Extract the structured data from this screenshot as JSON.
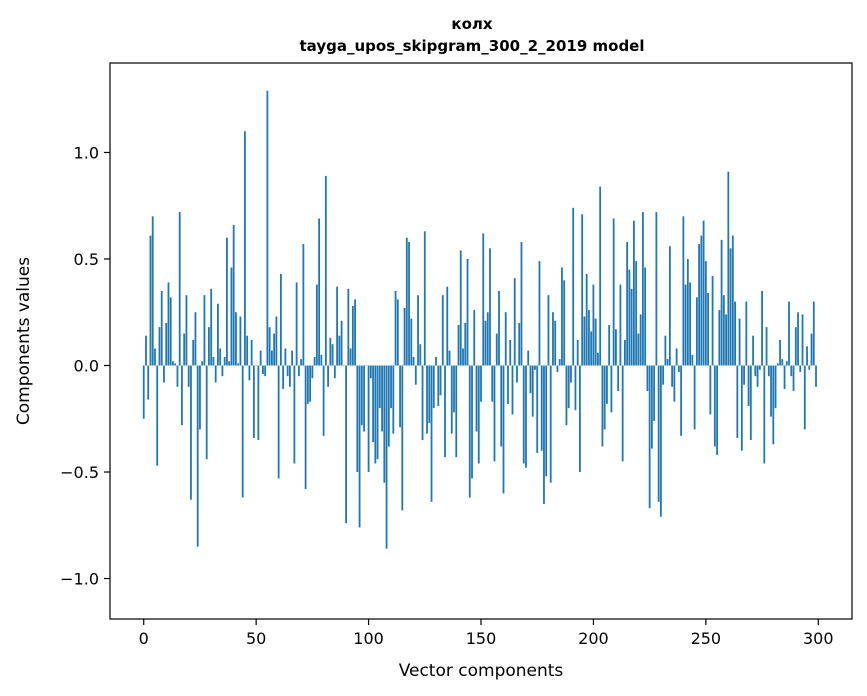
{
  "chart_data": {
    "type": "bar",
    "title": "колх",
    "subtitle": "tayga_upos_skipgram_300_2_2019 model",
    "xlabel": "Vector components",
    "ylabel": "Components values",
    "xlim": [
      -15,
      315
    ],
    "ylim": [
      -1.19,
      1.42
    ],
    "xticks": [
      0,
      50,
      100,
      150,
      200,
      250,
      300
    ],
    "xtick_labels": [
      "0",
      "50",
      "100",
      "150",
      "200",
      "250",
      "300"
    ],
    "yticks": [
      -1.0,
      -0.5,
      0.0,
      0.5,
      1.0
    ],
    "ytick_labels": [
      "−1.0",
      "−0.5",
      "0.0",
      "0.5",
      "1.0"
    ],
    "bar_color": "#1f77b4",
    "x_start": 0,
    "values": [
      -0.25,
      0.14,
      -0.16,
      0.61,
      0.7,
      0.08,
      -0.47,
      0.18,
      0.35,
      -0.08,
      0.2,
      0.39,
      0.32,
      0.02,
      0.01,
      -0.1,
      0.72,
      -0.28,
      0.15,
      0.33,
      -0.1,
      -0.63,
      0.12,
      0.25,
      -0.85,
      -0.3,
      0.02,
      0.33,
      -0.44,
      0.18,
      0.36,
      0.04,
      -0.08,
      0.29,
      0.08,
      -0.05,
      0.04,
      0.6,
      0.02,
      0.46,
      0.66,
      0.25,
      0.01,
      0.23,
      -0.62,
      1.1,
      0.14,
      -0.07,
      0.12,
      -0.34,
      0.0,
      -0.35,
      0.07,
      -0.04,
      -0.05,
      1.29,
      0.18,
      0.07,
      0.15,
      0.23,
      -0.53,
      0.43,
      -0.11,
      0.08,
      -0.05,
      -0.1,
      0.07,
      -0.46,
      0.39,
      -0.05,
      0.03,
      0.57,
      -0.58,
      -0.18,
      -0.17,
      -0.06,
      0.04,
      0.38,
      0.69,
      0.05,
      -0.33,
      0.89,
      -0.1,
      0.13,
      0.1,
      -0.06,
      0.37,
      0.14,
      0.21,
      0.0,
      -0.74,
      0.36,
      0.08,
      0.28,
      0.31,
      -0.5,
      -0.76,
      -0.28,
      -0.31,
      0.0,
      -0.5,
      -0.06,
      -0.36,
      -0.46,
      -0.44,
      -0.2,
      -0.31,
      -0.55,
      -0.86,
      -0.38,
      -0.2,
      -0.32,
      0.35,
      0.31,
      -0.29,
      -0.68,
      0.27,
      0.6,
      0.58,
      0.22,
      0.04,
      -0.09,
      0.33,
      0.1,
      -0.35,
      0.63,
      -0.32,
      -0.27,
      -0.64,
      -0.2,
      0.04,
      -0.19,
      -0.14,
      0.33,
      -0.43,
      0.37,
      0.07,
      -0.32,
      -0.22,
      -0.43,
      0.19,
      0.54,
      0.08,
      0.2,
      0.5,
      -0.62,
      -0.53,
      0.26,
      -0.31,
      -0.46,
      -0.17,
      0.62,
      0.21,
      0.25,
      0.55,
      -0.17,
      -0.45,
      0.15,
      0.35,
      -0.38,
      -0.6,
      0.25,
      -0.18,
      0.12,
      -0.23,
      0.41,
      -0.08,
      0.2,
      0.58,
      -0.46,
      -0.48,
      0.07,
      -0.13,
      -0.24,
      -0.02,
      -0.41,
      0.49,
      -0.4,
      -0.65,
      -0.52,
      0.33,
      -0.55,
      0.25,
      0.21,
      -0.03,
      0.03,
      0.46,
      0.4,
      -0.28,
      -0.2,
      -0.08,
      0.74,
      -0.21,
      0.12,
      -0.5,
      0.71,
      0.23,
      0.43,
      0.26,
      0.16,
      0.38,
      0.22,
      0.06,
      0.84,
      -0.38,
      -0.3,
      -0.18,
      0.19,
      -0.22,
      0.69,
      0.17,
      -0.12,
      0.38,
      -0.45,
      0.12,
      0.58,
      0.45,
      0.36,
      0.68,
      0.49,
      0.15,
      0.24,
      0.72,
      0.46,
      -0.12,
      -0.67,
      -0.39,
      -0.26,
      0.72,
      -0.64,
      -0.71,
      -0.09,
      0.14,
      0.03,
      0.56,
      -0.1,
      -0.17,
      0.08,
      -0.03,
      -0.33,
      0.7,
      0.38,
      0.5,
      0.39,
      0.05,
      -0.3,
      0.32,
      0.57,
      0.61,
      0.68,
      0.49,
      0.34,
      -0.23,
      0.42,
      -0.38,
      -0.42,
      0.26,
      0.59,
      0.33,
      0.24,
      0.91,
      0.55,
      0.61,
      0.3,
      -0.34,
      0.22,
      -0.4,
      -0.09,
      0.3,
      -0.19,
      -0.35,
      0.14,
      -0.05,
      -0.1,
      -0.02,
      0.35,
      -0.46,
      0.18,
      -0.05,
      -0.24,
      -0.37,
      -0.2,
      0.01,
      0.12,
      0.03,
      -0.11,
      0.02,
      0.3,
      -0.05,
      -0.12,
      0.18,
      0.25,
      -0.03,
      0.24,
      -0.3,
      0.09,
      -0.02,
      0.15,
      0.3,
      -0.1
    ]
  }
}
